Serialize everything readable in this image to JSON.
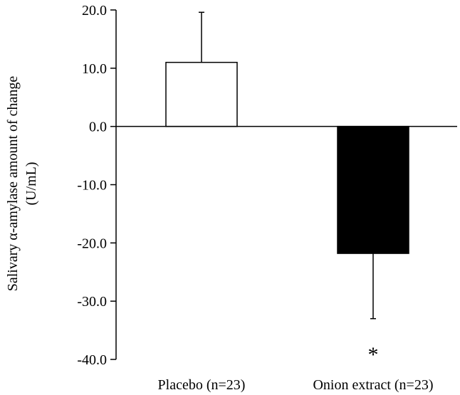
{
  "chart_data": {
    "type": "bar",
    "title": "",
    "ylabel_lines": [
      "Salivary α-amylase amount of change",
      "(U/mL)"
    ],
    "xlabel": "",
    "categories": [
      "Placebo (n=23)",
      "Onion extract (n=23)"
    ],
    "values": [
      11.0,
      -21.8
    ],
    "error_upper": [
      19.6,
      -33.0
    ],
    "bar_colors": [
      "#ffffff",
      "#000000"
    ],
    "ylim": [
      -40.0,
      20.0
    ],
    "yticks": [
      20.0,
      10.0,
      0.0,
      -10.0,
      -20.0,
      -30.0,
      -40.0
    ],
    "ytick_labels": [
      "20.0",
      "10.0",
      "0.0",
      "-10.0",
      "-20.0",
      "-30.0",
      "-40.0"
    ],
    "annotations": [
      {
        "category": "Onion extract (n=23)",
        "text": "*"
      }
    ],
    "grid": false,
    "legend": "none"
  }
}
